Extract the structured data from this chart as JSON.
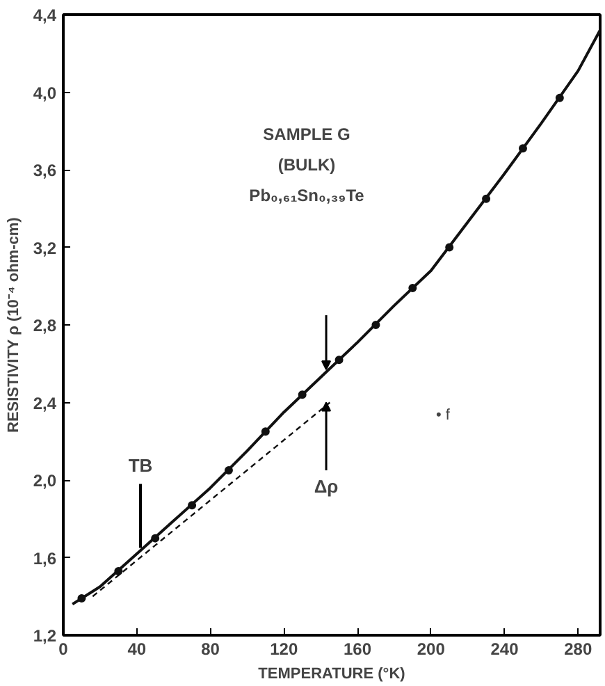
{
  "chart_data": {
    "type": "line",
    "xlabel": "TEMPERATURE (°K)",
    "ylabel": "RESISTIVITY ρ (10⁻⁴ ohm-cm)",
    "xlim": [
      0,
      292
    ],
    "ylim": [
      1.2,
      4.4
    ],
    "xticks": [
      0,
      40,
      80,
      120,
      160,
      200,
      240,
      280
    ],
    "yticks": [
      {
        "value": 1.2,
        "label": "1,2"
      },
      {
        "value": 1.6,
        "label": "1,6"
      },
      {
        "value": 2.0,
        "label": "2,0"
      },
      {
        "value": 2.4,
        "label": "2,4"
      },
      {
        "value": 2.8,
        "label": "2,8"
      },
      {
        "value": 3.2,
        "label": "3,2"
      },
      {
        "value": 3.6,
        "label": "3,6"
      },
      {
        "value": 4.0,
        "label": "4,0"
      },
      {
        "value": 4.4,
        "label": "4,4"
      }
    ],
    "grid": false,
    "series": [
      {
        "color": "#111111",
        "line_style": "solid",
        "x": [
          5,
          20,
          40,
          60,
          80,
          100,
          120,
          140,
          160,
          180,
          200,
          220,
          240,
          260,
          280,
          292
        ],
        "values": [
          1.36,
          1.45,
          1.62,
          1.79,
          1.96,
          2.15,
          2.35,
          2.53,
          2.71,
          2.9,
          3.08,
          3.33,
          3.58,
          3.84,
          4.11,
          4.32
        ]
      },
      {
        "type": "scatter",
        "marker": "circle",
        "color": "#111111",
        "x": [
          10,
          30,
          50,
          70,
          90,
          110,
          130,
          150,
          170,
          190,
          210,
          230,
          250,
          270
        ],
        "values": [
          1.39,
          1.53,
          1.7,
          1.87,
          2.05,
          2.25,
          2.44,
          2.62,
          2.8,
          2.99,
          3.2,
          3.45,
          3.71,
          3.97
        ]
      },
      {
        "type": "line",
        "color": "#111111",
        "line_style": "dashed",
        "x": [
          16,
          145
        ],
        "values": [
          1.4,
          2.4
        ]
      }
    ],
    "annotations": [
      "SAMPLE G",
      "(BULK)",
      "Pb₀,₆₁Sn₀,₃₉Te",
      {
        "text": "TB",
        "x": 42,
        "y": 1.65
      },
      {
        "text": "Δρ",
        "x": 143,
        "y": 2.4
      },
      "• f"
    ]
  }
}
